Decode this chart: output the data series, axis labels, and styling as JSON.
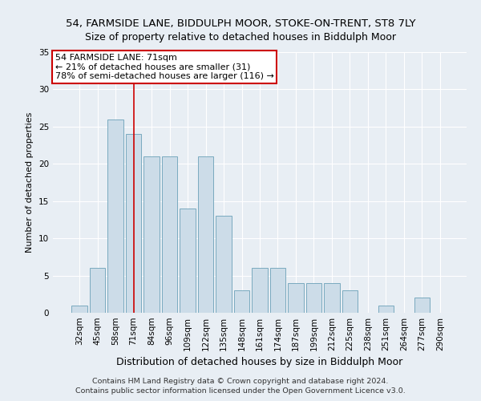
{
  "title1": "54, FARMSIDE LANE, BIDDULPH MOOR, STOKE-ON-TRENT, ST8 7LY",
  "title2": "Size of property relative to detached houses in Biddulph Moor",
  "xlabel": "Distribution of detached houses by size in Biddulph Moor",
  "ylabel": "Number of detached properties",
  "categories": [
    "32sqm",
    "45sqm",
    "58sqm",
    "71sqm",
    "84sqm",
    "96sqm",
    "109sqm",
    "122sqm",
    "135sqm",
    "148sqm",
    "161sqm",
    "174sqm",
    "187sqm",
    "199sqm",
    "212sqm",
    "225sqm",
    "238sqm",
    "251sqm",
    "264sqm",
    "277sqm",
    "290sqm"
  ],
  "values": [
    1,
    6,
    26,
    24,
    21,
    21,
    14,
    21,
    13,
    3,
    6,
    6,
    4,
    4,
    4,
    3,
    0,
    1,
    0,
    2,
    0
  ],
  "bar_color": "#ccdce8",
  "bar_edge_color": "#7aaabf",
  "highlight_index": 3,
  "highlight_line_color": "#cc0000",
  "ylim": [
    0,
    35
  ],
  "yticks": [
    0,
    5,
    10,
    15,
    20,
    25,
    30,
    35
  ],
  "annotation_text": "54 FARMSIDE LANE: 71sqm\n← 21% of detached houses are smaller (31)\n78% of semi-detached houses are larger (116) →",
  "annotation_box_color": "#ffffff",
  "annotation_box_edge": "#cc0000",
  "footer1": "Contains HM Land Registry data © Crown copyright and database right 2024.",
  "footer2": "Contains public sector information licensed under the Open Government Licence v3.0.",
  "bg_color": "#e8eef4",
  "plot_bg_color": "#e8eef4",
  "grid_color": "#ffffff",
  "title1_fontsize": 9.5,
  "title2_fontsize": 9,
  "ylabel_fontsize": 8,
  "xlabel_fontsize": 9,
  "tick_fontsize": 7.5,
  "annotation_fontsize": 8,
  "footer_fontsize": 6.8
}
